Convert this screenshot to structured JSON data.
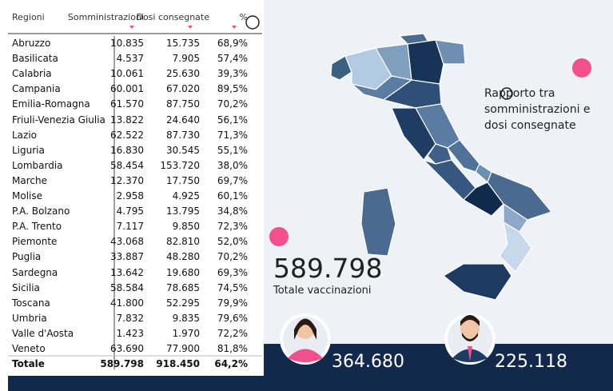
{
  "table": {
    "header": [
      "Regioni",
      "Somministrazioni",
      "Dosi consegnate",
      "%"
    ],
    "rows": [
      [
        "Abruzzo",
        "10.835",
        "15.735",
        "68,9%"
      ],
      [
        "Basilicata",
        "4.537",
        "7.905",
        "57,4%"
      ],
      [
        "Calabria",
        "10.061",
        "25.630",
        "39,3%"
      ],
      [
        "Campania",
        "60.001",
        "67.020",
        "89,5%"
      ],
      [
        "Emilia-Romagna",
        "61.570",
        "87.750",
        "70,2%"
      ],
      [
        "Friuli-Venezia Giulia",
        "13.822",
        "24.640",
        "56,1%"
      ],
      [
        "Lazio",
        "62.522",
        "87.730",
        "71,3%"
      ],
      [
        "Liguria",
        "16.830",
        "30.545",
        "55,1%"
      ],
      [
        "Lombardia",
        "58.454",
        "153.720",
        "38,0%"
      ],
      [
        "Marche",
        "12.370",
        "17.750",
        "69,7%"
      ],
      [
        "Molise",
        "2.958",
        "4.925",
        "60,1%"
      ],
      [
        "P.A. Bolzano",
        "4.795",
        "13.795",
        "34,8%"
      ],
      [
        "P.A. Trento",
        "7.117",
        "9.850",
        "72,3%"
      ],
      [
        "Piemonte",
        "43.068",
        "82.810",
        "52,0%"
      ],
      [
        "Puglia",
        "33.887",
        "48.280",
        "70,2%"
      ],
      [
        "Sardegna",
        "13.642",
        "19.680",
        "69,3%"
      ],
      [
        "Sicilia",
        "58.584",
        "78.685",
        "74,5%"
      ],
      [
        "Toscana",
        "41.800",
        "52.295",
        "79,9%"
      ],
      [
        "Umbria",
        "7.832",
        "9.835",
        "79,6%"
      ],
      [
        "Valle d'Aosta",
        "1.423",
        "1.970",
        "72,2%"
      ],
      [
        "Veneto",
        "63.690",
        "77.900",
        "81,8%"
      ]
    ],
    "total": [
      "Totale",
      "589.798",
      "918.450",
      "64,2%"
    ]
  },
  "map_note": "Rapporto tra somministrazioni e dosi consegnate",
  "total_vaccinations": {
    "value": "589.798",
    "label": "Totale vaccinazioni"
  },
  "women": "364.680",
  "men": "225.118"
}
